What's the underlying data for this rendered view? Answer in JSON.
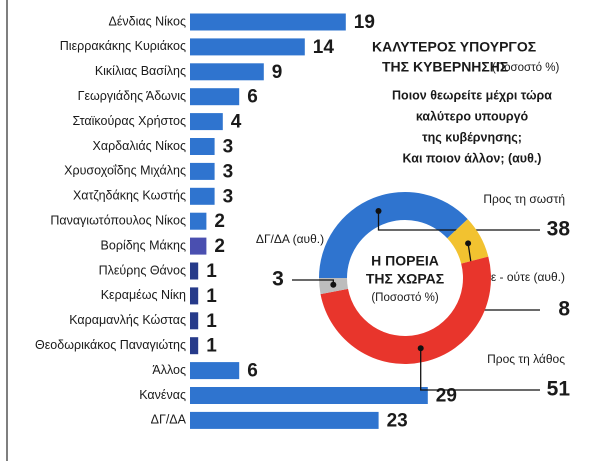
{
  "chart_data": [
    {
      "type": "bar",
      "title": [
        "ΚΑΛΥΤΕΡΟΣ ΥΠΟΥΡΓΟΣ",
        "ΤΗΣ ΚΥΒΕΡΝΗΣΗΣ"
      ],
      "subtitle": "(Ποσοστό %)",
      "question": [
        "Ποιον θεωρείτε μέχρι τώρα",
        "καλύτερο υπουργό",
        "της κυβέρνησης;",
        "Και ποιον άλλον; (αυθ.)"
      ],
      "categories": [
        "Δένδιας Νίκος",
        "Πιερρακάκης Κυριάκος",
        "Κικίλιας Βασίλης",
        "Γεωργιάδης Άδωνις",
        "Σταϊκούρας Χρήστος",
        "Χαρδαλιάς Νίκος",
        "Χρυσοχοΐδης Μιχάλης",
        "Χατζηδάκης Κωστής",
        "Παναγιωτόπουλος Νίκος",
        "Βορίδης Μάκης",
        "Πλεύρης Θάνος",
        "Κεραμέως Νίκη",
        "Καραμανλής Κώστας",
        "Θεοδωρικάκος Παναγιώτης",
        "Άλλος",
        "Κανένας",
        "ΔΓ/ΔΑ"
      ],
      "values": [
        19,
        14,
        9,
        6,
        4,
        3,
        3,
        3,
        2,
        2,
        1,
        1,
        1,
        1,
        6,
        29,
        23
      ],
      "colors": [
        "#2f74cf",
        "#2f74cf",
        "#2f74cf",
        "#2f74cf",
        "#2f74cf",
        "#2f74cf",
        "#2f74cf",
        "#2f74cf",
        "#2f74cf",
        "#4a4fb0",
        "#263a8a",
        "#263a8a",
        "#263a8a",
        "#263a8a",
        "#2f74cf",
        "#2f74cf",
        "#2f74cf"
      ]
    },
    {
      "type": "donut",
      "title": [
        "Η ΠΟΡΕΙΑ",
        "ΤΗΣ ΧΩΡΑΣ"
      ],
      "subtitle": "(Ποσοστό %)",
      "categories": [
        "Προς τη σωστή",
        "Ούτε - ούτε (αυθ.)",
        "Προς τη λάθος",
        "ΔΓ/ΔΑ (αυθ.)"
      ],
      "values": [
        38,
        8,
        51,
        3
      ],
      "colors": [
        "#2f74cf",
        "#f2c230",
        "#e8352c",
        "#bdbdbd"
      ]
    }
  ]
}
